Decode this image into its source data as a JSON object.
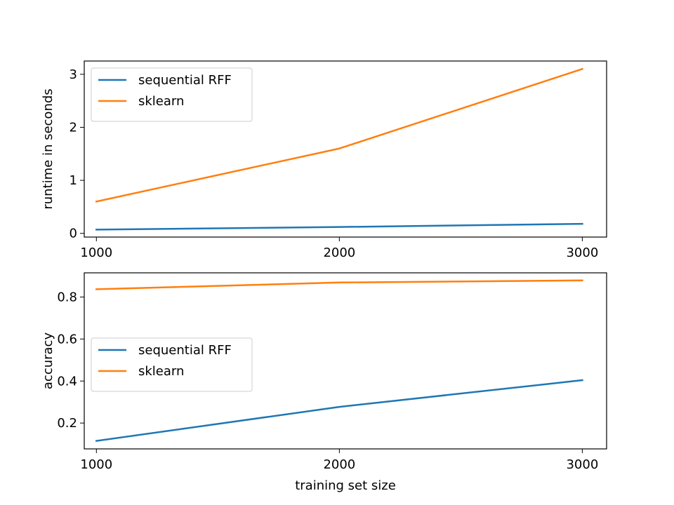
{
  "chart_data": [
    {
      "type": "line",
      "title": "",
      "xlabel": "",
      "ylabel": "runtime in seconds",
      "x": [
        1000,
        2000,
        3000
      ],
      "xticks": [
        1000,
        2000,
        3000
      ],
      "yticks": [
        0,
        1,
        2,
        3
      ],
      "xlim": [
        950,
        3100
      ],
      "ylim": [
        -0.07,
        3.25
      ],
      "grid": false,
      "legend_position": "upper-left",
      "series": [
        {
          "name": "sequential RFF",
          "color": "#1f77b4",
          "values": [
            0.07,
            0.12,
            0.18
          ]
        },
        {
          "name": "sklearn",
          "color": "#ff7f0e",
          "values": [
            0.6,
            1.6,
            3.1
          ]
        }
      ]
    },
    {
      "type": "line",
      "title": "",
      "xlabel": "training set size",
      "ylabel": "accuracy",
      "x": [
        1000,
        2000,
        3000
      ],
      "xticks": [
        1000,
        2000,
        3000
      ],
      "yticks": [
        0.2,
        0.4,
        0.6,
        0.8
      ],
      "xlim": [
        950,
        3100
      ],
      "ylim": [
        0.077,
        0.915
      ],
      "grid": false,
      "legend_position": "center-left",
      "series": [
        {
          "name": "sequential RFF",
          "color": "#1f77b4",
          "values": [
            0.115,
            0.277,
            0.404
          ]
        },
        {
          "name": "sklearn",
          "color": "#ff7f0e",
          "values": [
            0.837,
            0.869,
            0.879
          ]
        }
      ]
    }
  ]
}
